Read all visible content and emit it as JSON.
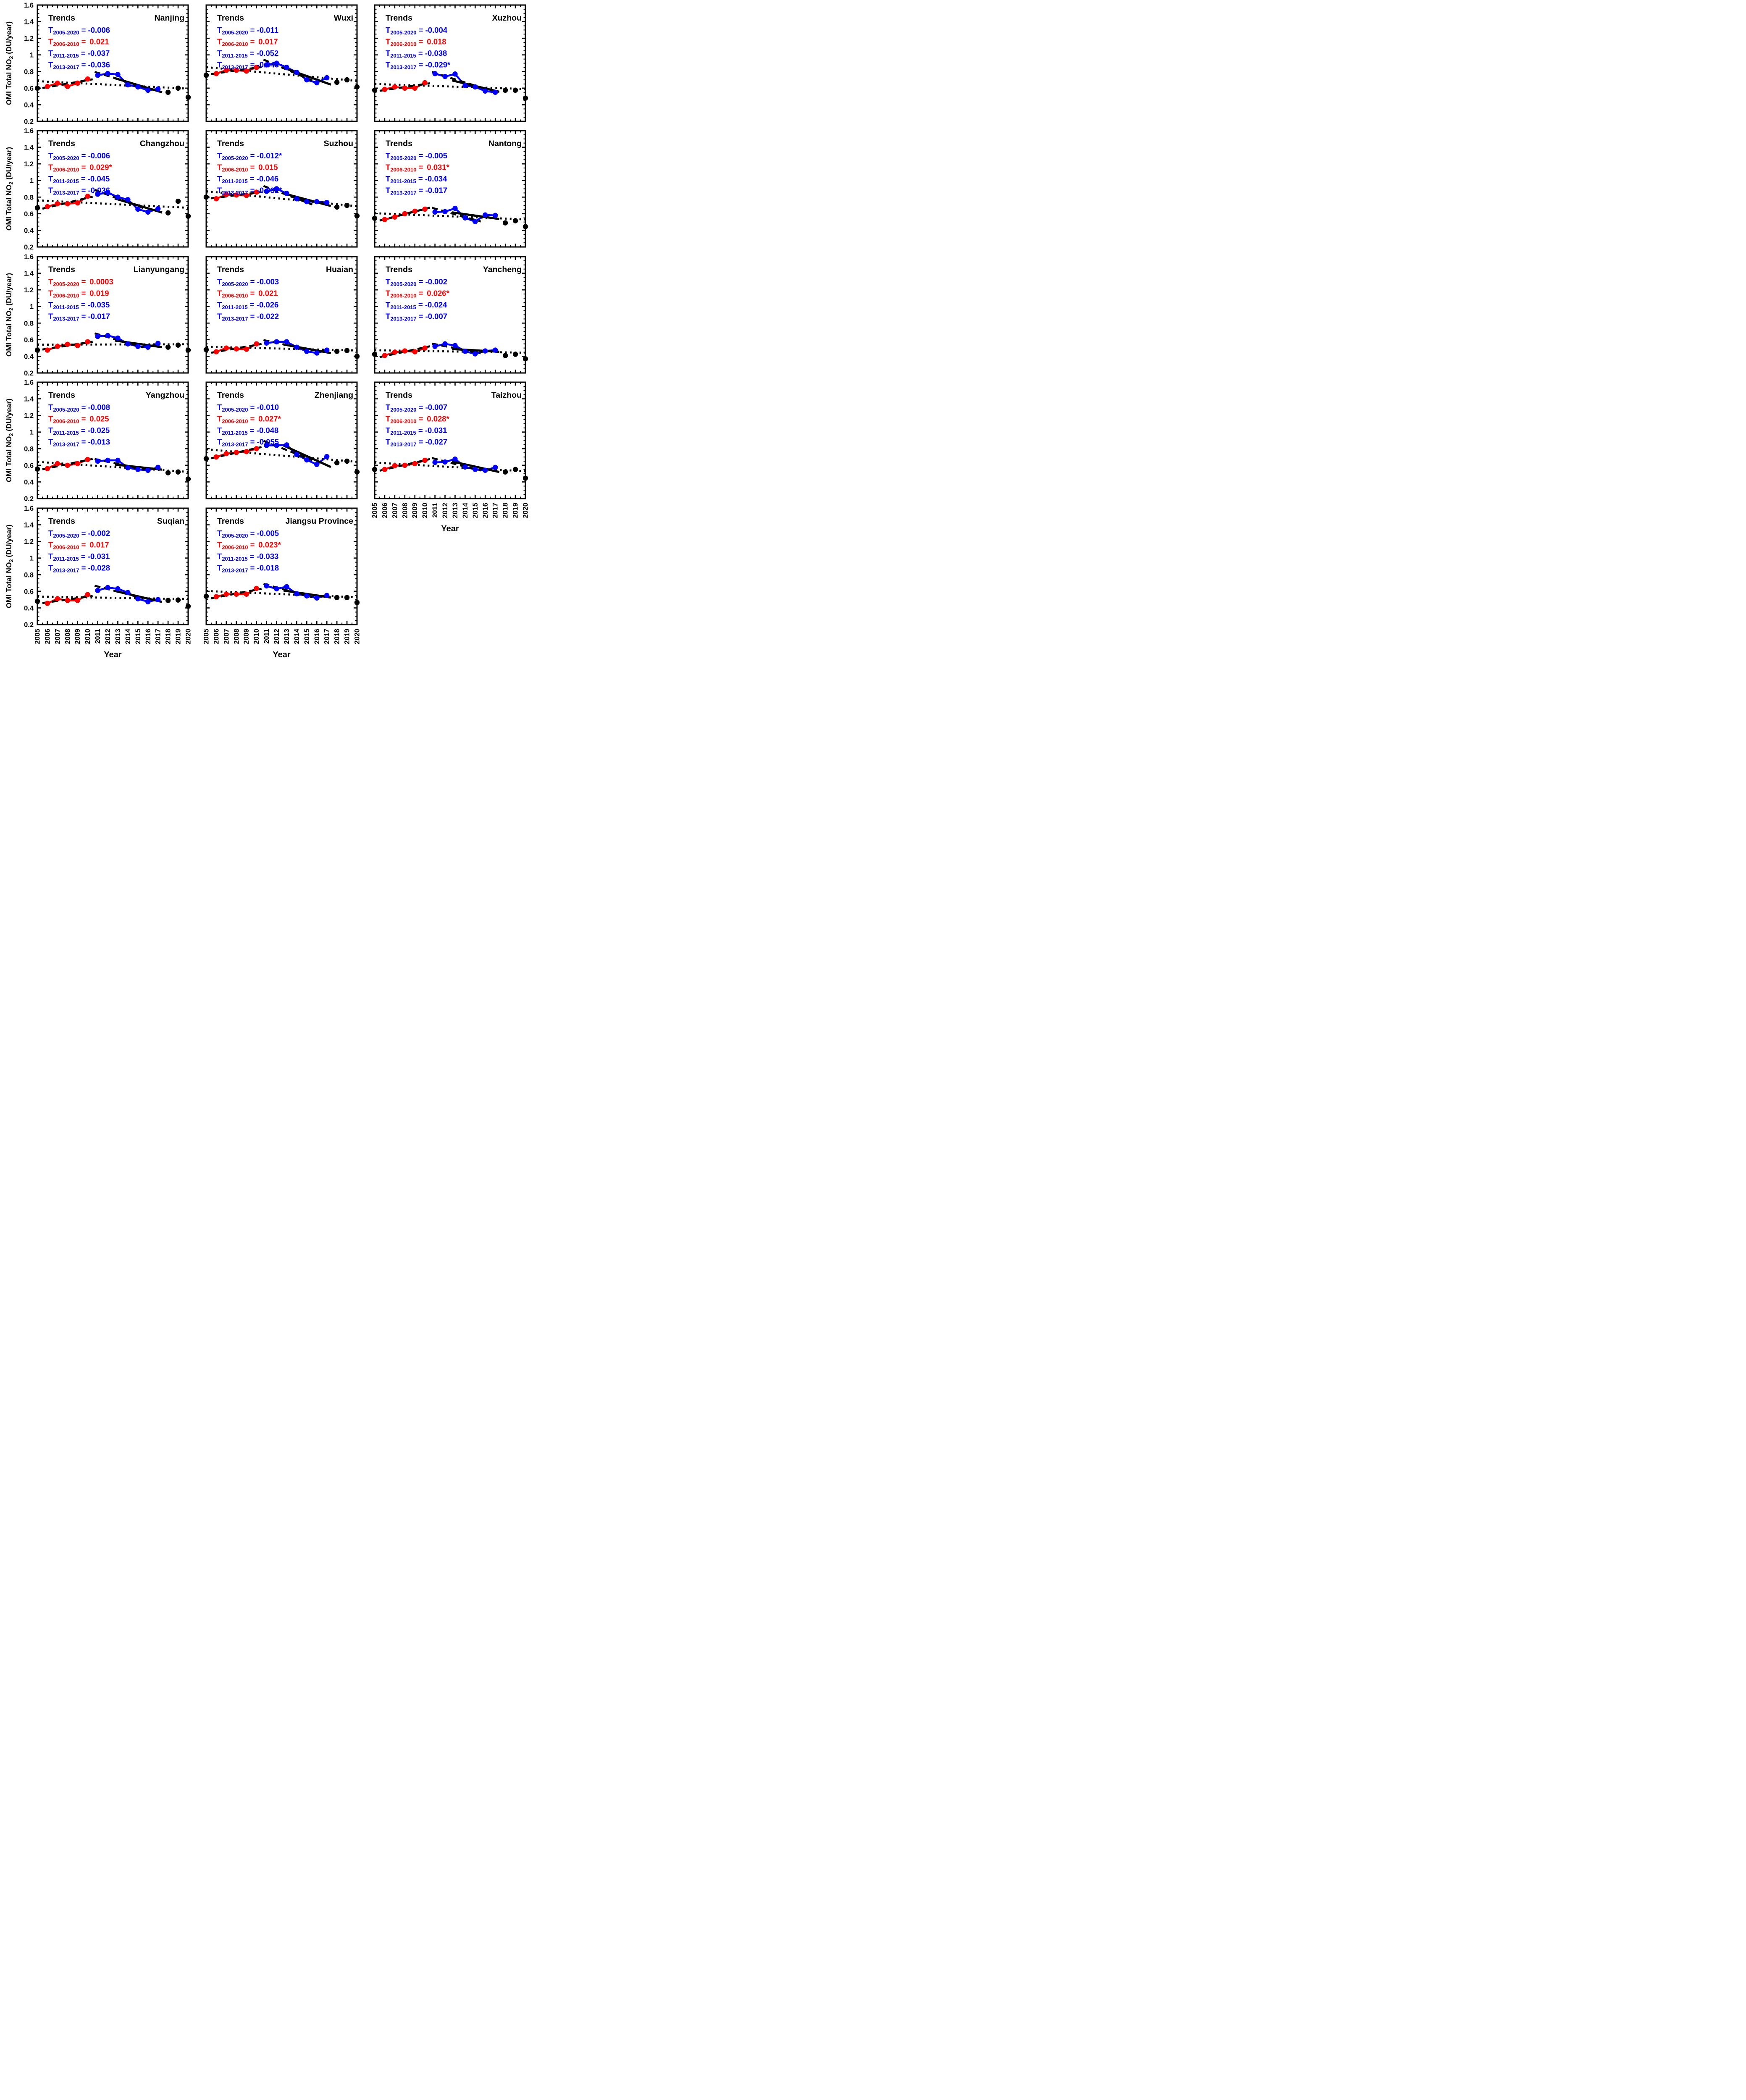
{
  "figure": {
    "y_axis": {
      "title_main": "OMI Total NO",
      "title_sub": "2",
      "title_rest": " (DU/year)",
      "range": [
        0.2,
        1.6
      ],
      "major_ticks": [
        0.2,
        0.4,
        0.6,
        0.8,
        1,
        1.2,
        1.4,
        1.6
      ],
      "tick_labels": [
        "0.2",
        "0.4",
        "0.6",
        "0.8",
        "1",
        "1.2",
        "1.4",
        "1.6"
      ]
    },
    "x_axis": {
      "title": "Year",
      "range": [
        2005,
        2020
      ],
      "tick_labels": [
        "2005",
        "2006",
        "2007",
        "2008",
        "2009",
        "2010",
        "2011",
        "2012",
        "2013",
        "2014",
        "2015",
        "2016",
        "2017",
        "2018",
        "2019",
        "2020"
      ]
    },
    "trends_heading": "Trends",
    "trend_periods": [
      "2005-2020",
      "2006-2010",
      "2011-2015",
      "2013-2017"
    ],
    "colors": {
      "positive": "#ff0000",
      "negative": "#0000ff",
      "black": "#000000",
      "red_series": "#ff0000",
      "blue_series": "#0000ff"
    },
    "series_color_rule": {
      "2005": "black",
      "2006-2010": "red",
      "2011-2017": "blue",
      "2018-2020": "black"
    }
  },
  "chart_data": [
    {
      "type": "line",
      "title": "Nanjing",
      "col": 0,
      "row": 0,
      "years": [
        2005,
        2006,
        2007,
        2008,
        2009,
        2010,
        2011,
        2012,
        2013,
        2014,
        2015,
        2016,
        2017,
        2018,
        2019,
        2020
      ],
      "values": [
        0.6,
        0.62,
        0.66,
        0.62,
        0.66,
        0.71,
        0.755,
        0.775,
        0.765,
        0.64,
        0.615,
        0.575,
        0.59,
        0.55,
        0.6,
        0.49
      ],
      "trend_values": [
        "-0.006",
        "0.021",
        "-0.037",
        "-0.036"
      ]
    },
    {
      "type": "line",
      "title": "Wuxi",
      "col": 1,
      "row": 0,
      "years": [
        2005,
        2006,
        2007,
        2008,
        2009,
        2010,
        2011,
        2012,
        2013,
        2014,
        2015,
        2016,
        2017,
        2018,
        2019,
        2020
      ],
      "values": [
        0.755,
        0.775,
        0.815,
        0.815,
        0.805,
        0.85,
        0.88,
        0.9,
        0.85,
        0.79,
        0.7,
        0.665,
        0.725,
        0.67,
        0.7,
        0.615
      ],
      "trend_values": [
        "-0.011",
        "0.017",
        "-0.052",
        "-0.043"
      ]
    },
    {
      "type": "line",
      "title": "Xuzhou",
      "col": 2,
      "row": 0,
      "years": [
        2005,
        2006,
        2007,
        2008,
        2009,
        2010,
        2011,
        2012,
        2013,
        2014,
        2015,
        2016,
        2017,
        2018,
        2019,
        2020
      ],
      "values": [
        0.575,
        0.585,
        0.615,
        0.6,
        0.6,
        0.665,
        0.775,
        0.74,
        0.77,
        0.63,
        0.615,
        0.565,
        0.55,
        0.575,
        0.575,
        0.48
      ],
      "trend_values": [
        "-0.004",
        "0.018",
        "-0.038",
        "-0.029*"
      ]
    },
    {
      "type": "line",
      "title": "Changzhou",
      "col": 0,
      "row": 1,
      "years": [
        2005,
        2006,
        2007,
        2008,
        2009,
        2010,
        2011,
        2012,
        2013,
        2014,
        2015,
        2016,
        2017,
        2018,
        2019,
        2020
      ],
      "values": [
        0.67,
        0.685,
        0.72,
        0.72,
        0.73,
        0.81,
        0.835,
        0.855,
        0.8,
        0.77,
        0.655,
        0.62,
        0.66,
        0.61,
        0.75,
        0.57
      ],
      "trend_values": [
        "-0.006",
        "0.029*",
        "-0.045",
        "-0.036"
      ]
    },
    {
      "type": "line",
      "title": "Suzhou",
      "col": 1,
      "row": 1,
      "years": [
        2005,
        2006,
        2007,
        2008,
        2009,
        2010,
        2011,
        2012,
        2013,
        2014,
        2015,
        2016,
        2017,
        2018,
        2019,
        2020
      ],
      "values": [
        0.8,
        0.78,
        0.83,
        0.825,
        0.82,
        0.86,
        0.87,
        0.9,
        0.845,
        0.78,
        0.745,
        0.745,
        0.735,
        0.68,
        0.7,
        0.575
      ],
      "trend_values": [
        "-0.012*",
        "0.015",
        "-0.046",
        "-0.032*"
      ]
    },
    {
      "type": "line",
      "title": "Nantong",
      "col": 2,
      "row": 1,
      "years": [
        2005,
        2006,
        2007,
        2008,
        2009,
        2010,
        2011,
        2012,
        2013,
        2014,
        2015,
        2016,
        2017,
        2018,
        2019,
        2020
      ],
      "values": [
        0.545,
        0.53,
        0.56,
        0.6,
        0.63,
        0.655,
        0.62,
        0.625,
        0.665,
        0.55,
        0.505,
        0.585,
        0.58,
        0.49,
        0.515,
        0.445
      ],
      "trend_values": [
        "-0.005",
        "0.031*",
        "-0.034",
        "-0.017"
      ]
    },
    {
      "type": "line",
      "title": "Lianyungang",
      "col": 0,
      "row": 2,
      "years": [
        2005,
        2006,
        2007,
        2008,
        2009,
        2010,
        2011,
        2012,
        2013,
        2014,
        2015,
        2016,
        2017,
        2018,
        2019,
        2020
      ],
      "values": [
        0.475,
        0.475,
        0.52,
        0.545,
        0.53,
        0.575,
        0.64,
        0.65,
        0.62,
        0.55,
        0.52,
        0.51,
        0.555,
        0.51,
        0.535,
        0.475
      ],
      "trend_values": [
        "0.0003",
        "0.019",
        "-0.035",
        "-0.017"
      ]
    },
    {
      "type": "line",
      "title": "Huaian",
      "col": 1,
      "row": 2,
      "years": [
        2005,
        2006,
        2007,
        2008,
        2009,
        2010,
        2011,
        2012,
        2013,
        2014,
        2015,
        2016,
        2017,
        2018,
        2019,
        2020
      ],
      "values": [
        0.48,
        0.455,
        0.5,
        0.49,
        0.485,
        0.55,
        0.56,
        0.575,
        0.575,
        0.51,
        0.46,
        0.44,
        0.475,
        0.46,
        0.47,
        0.4
      ],
      "trend_values": [
        "-0.003",
        "0.021",
        "-0.026",
        "-0.022"
      ]
    },
    {
      "type": "line",
      "title": "Yancheng",
      "col": 2,
      "row": 2,
      "years": [
        2005,
        2006,
        2007,
        2008,
        2009,
        2010,
        2011,
        2012,
        2013,
        2014,
        2015,
        2016,
        2017,
        2018,
        2019,
        2020
      ],
      "values": [
        0.425,
        0.41,
        0.45,
        0.465,
        0.455,
        0.5,
        0.52,
        0.55,
        0.53,
        0.46,
        0.43,
        0.465,
        0.475,
        0.41,
        0.425,
        0.37
      ],
      "trend_values": [
        "-0.002",
        "0.026*",
        "-0.024",
        "-0.007"
      ]
    },
    {
      "type": "line",
      "title": "Yangzhou",
      "col": 0,
      "row": 3,
      "years": [
        2005,
        2006,
        2007,
        2008,
        2009,
        2010,
        2011,
        2012,
        2013,
        2014,
        2015,
        2016,
        2017,
        2018,
        2019,
        2020
      ],
      "values": [
        0.555,
        0.56,
        0.62,
        0.6,
        0.62,
        0.67,
        0.65,
        0.66,
        0.66,
        0.57,
        0.55,
        0.54,
        0.575,
        0.51,
        0.52,
        0.435
      ],
      "trend_values": [
        "-0.008",
        "0.025",
        "-0.025",
        "-0.013"
      ]
    },
    {
      "type": "line",
      "title": "Zhenjiang",
      "col": 1,
      "row": 3,
      "years": [
        2005,
        2006,
        2007,
        2008,
        2009,
        2010,
        2011,
        2012,
        2013,
        2014,
        2015,
        2016,
        2017,
        2018,
        2019,
        2020
      ],
      "values": [
        0.68,
        0.7,
        0.74,
        0.755,
        0.765,
        0.8,
        0.84,
        0.84,
        0.845,
        0.73,
        0.665,
        0.61,
        0.705,
        0.63,
        0.65,
        0.52
      ],
      "trend_values": [
        "-0.010",
        "0.027*",
        "-0.048",
        "-0.055"
      ]
    },
    {
      "type": "line",
      "title": "Taizhou",
      "col": 2,
      "row": 3,
      "years": [
        2005,
        2006,
        2007,
        2008,
        2009,
        2010,
        2011,
        2012,
        2013,
        2014,
        2015,
        2016,
        2017,
        2018,
        2019,
        2020
      ],
      "values": [
        0.55,
        0.55,
        0.595,
        0.6,
        0.62,
        0.66,
        0.635,
        0.64,
        0.675,
        0.58,
        0.55,
        0.54,
        0.575,
        0.52,
        0.55,
        0.445
      ],
      "trend_values": [
        "-0.007",
        "0.028*",
        "-0.031",
        "-0.027"
      ]
    },
    {
      "type": "line",
      "title": "Suqian",
      "col": 0,
      "row": 4,
      "years": [
        2005,
        2006,
        2007,
        2008,
        2009,
        2010,
        2011,
        2012,
        2013,
        2014,
        2015,
        2016,
        2017,
        2018,
        2019,
        2020
      ],
      "values": [
        0.48,
        0.455,
        0.51,
        0.49,
        0.49,
        0.56,
        0.61,
        0.645,
        0.63,
        0.585,
        0.51,
        0.475,
        0.5,
        0.49,
        0.495,
        0.42
      ],
      "trend_values": [
        "-0.002",
        "0.017",
        "-0.031",
        "-0.028"
      ]
    },
    {
      "type": "line",
      "title": "Jiangsu Province",
      "col": 1,
      "row": 4,
      "years": [
        2005,
        2006,
        2007,
        2008,
        2009,
        2010,
        2011,
        2012,
        2013,
        2014,
        2015,
        2016,
        2017,
        2018,
        2019,
        2020
      ],
      "values": [
        0.54,
        0.535,
        0.565,
        0.565,
        0.565,
        0.635,
        0.665,
        0.63,
        0.655,
        0.57,
        0.545,
        0.52,
        0.55,
        0.525,
        0.525,
        0.465
      ],
      "trend_values": [
        "-0.005",
        "0.023*",
        "-0.033",
        "-0.018"
      ]
    }
  ]
}
